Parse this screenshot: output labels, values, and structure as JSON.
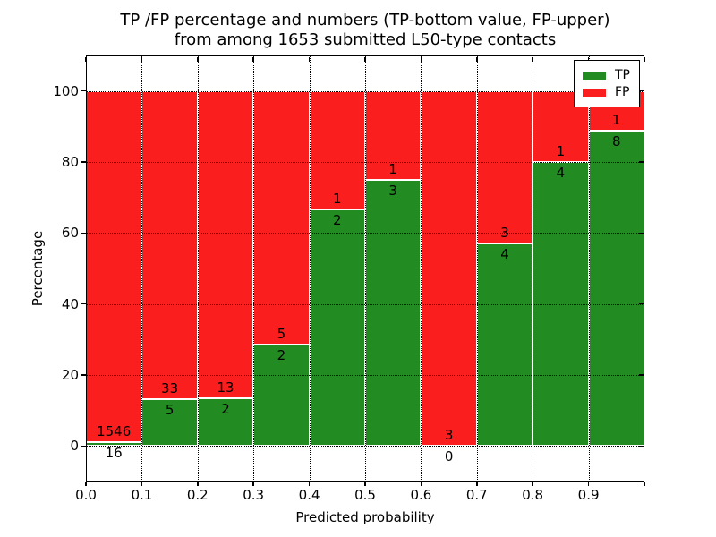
{
  "figure": {
    "title_line1": "TP /FP percentage and numbers (TP-bottom value, FP-upper)",
    "title_line2": "from among 1653 submitted L50-type contacts"
  },
  "chart_data": {
    "type": "bar",
    "stacked": true,
    "normalized_to_percent": true,
    "title": "TP /FP percentage and numbers (TP-bottom value, FP-upper) from among 1653 submitted L50-type contacts",
    "xlabel": "Predicted probability",
    "ylabel": "Percentage",
    "xlim": [
      0.0,
      1.0
    ],
    "ylim": [
      -10,
      110
    ],
    "grid": "dotted",
    "legend_position": "upper right",
    "total_contacts_shown_in_title": 1653,
    "bin_width": 0.1,
    "x_ticks": [
      "0.0",
      "0.1",
      "0.2",
      "0.3",
      "0.4",
      "0.5",
      "0.6",
      "0.7",
      "0.8",
      "0.9"
    ],
    "y_ticks": [
      0,
      20,
      40,
      60,
      80,
      100
    ],
    "categories": [
      "0.0-0.1",
      "0.1-0.2",
      "0.2-0.3",
      "0.3-0.4",
      "0.4-0.5",
      "0.5-0.6",
      "0.6-0.7",
      "0.7-0.8",
      "0.8-0.9",
      "0.9-1.0"
    ],
    "series": [
      {
        "name": "TP",
        "color": "#228b22",
        "values": [
          16,
          5,
          2,
          2,
          2,
          3,
          0,
          4,
          4,
          8
        ]
      },
      {
        "name": "FP",
        "color": "#fa1e1e",
        "values": [
          1546,
          33,
          13,
          5,
          1,
          1,
          3,
          3,
          1,
          1
        ]
      }
    ],
    "percent_tp_per_bin": [
      1.02,
      13.16,
      13.33,
      28.57,
      66.67,
      75.0,
      0.0,
      57.14,
      80.0,
      88.89
    ],
    "legend": [
      {
        "label": "TP"
      },
      {
        "label": "FP"
      }
    ]
  }
}
